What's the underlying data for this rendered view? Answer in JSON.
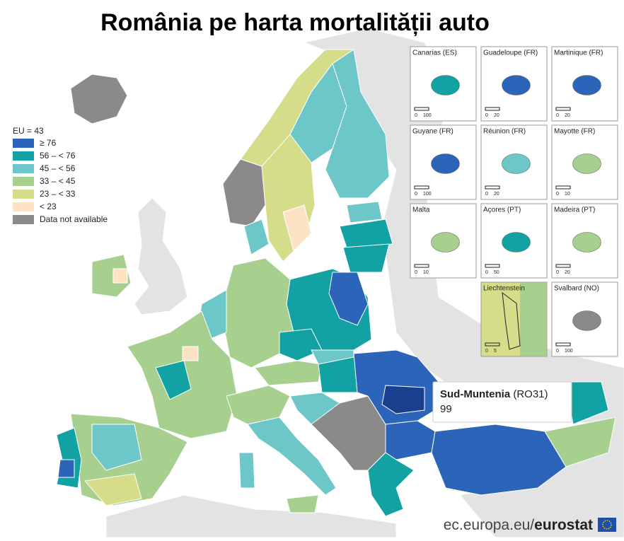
{
  "title": "România pe harta mortalității auto",
  "legend": {
    "title": "EU = 43",
    "items": [
      {
        "label": "≥ 76",
        "color": "#2b64b8"
      },
      {
        "label": "56 – < 76",
        "color": "#13a2a3"
      },
      {
        "label": "45 – < 56",
        "color": "#6dc6c8"
      },
      {
        "label": "33 – < 45",
        "color": "#a7d08e"
      },
      {
        "label": "23 – < 33",
        "color": "#d5dd8b"
      },
      {
        "label": "< 23",
        "color": "#fbe3c3"
      },
      {
        "label": "Data not available",
        "color": "#8a8a8a"
      }
    ]
  },
  "insets": [
    {
      "name": "Canarias (ES)",
      "scale": [
        0,
        100
      ]
    },
    {
      "name": "Guadeloupe (FR)",
      "scale": [
        0,
        20
      ]
    },
    {
      "name": "Martinique (FR)",
      "scale": [
        0,
        20
      ]
    },
    {
      "name": "Guyane (FR)",
      "scale": [
        0,
        100
      ]
    },
    {
      "name": "Réunion (FR)",
      "scale": [
        0,
        20
      ]
    },
    {
      "name": "Mayotte (FR)",
      "scale": [
        0,
        10
      ]
    },
    {
      "name": "Malta",
      "scale": [
        0,
        10
      ]
    },
    {
      "name": "Açores (PT)",
      "scale": [
        0,
        50
      ]
    },
    {
      "name": "Madeira (PT)",
      "scale": [
        0,
        20
      ]
    },
    {
      "name": "Liechtenstein",
      "scale": [
        0,
        5
      ]
    },
    {
      "name": "Svalbard (NO)",
      "scale": [
        0,
        100
      ]
    }
  ],
  "tooltip": {
    "region": "Sud-Muntenia",
    "code": "(RO31)",
    "value": 99
  },
  "source": {
    "domain": "ec.europa.eu/",
    "brand": "eurostat"
  }
}
